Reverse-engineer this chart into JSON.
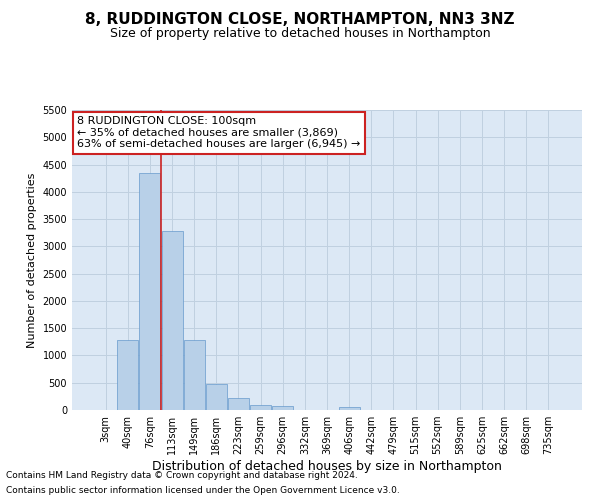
{
  "title": "8, RUDDINGTON CLOSE, NORTHAMPTON, NN3 3NZ",
  "subtitle": "Size of property relative to detached houses in Northampton",
  "xlabel": "Distribution of detached houses by size in Northampton",
  "ylabel": "Number of detached properties",
  "categories": [
    "3sqm",
    "40sqm",
    "76sqm",
    "113sqm",
    "149sqm",
    "186sqm",
    "223sqm",
    "259sqm",
    "296sqm",
    "332sqm",
    "369sqm",
    "406sqm",
    "442sqm",
    "479sqm",
    "515sqm",
    "552sqm",
    "589sqm",
    "625sqm",
    "662sqm",
    "698sqm",
    "735sqm"
  ],
  "bar_values": [
    0,
    1275,
    4350,
    3275,
    1275,
    475,
    225,
    100,
    75,
    0,
    0,
    50,
    0,
    0,
    0,
    0,
    0,
    0,
    0,
    0,
    0
  ],
  "bar_color": "#b8d0e8",
  "bar_edgecolor": "#6699cc",
  "vline_x_index": 2.5,
  "vline_color": "#cc2222",
  "annotation_line1": "8 RUDDINGTON CLOSE: 100sqm",
  "annotation_line2": "← 35% of detached houses are smaller (3,869)",
  "annotation_line3": "63% of semi-detached houses are larger (6,945) →",
  "annotation_box_edgecolor": "#cc2222",
  "annotation_box_facecolor": "#ffffff",
  "ylim": [
    0,
    5500
  ],
  "yticks": [
    0,
    500,
    1000,
    1500,
    2000,
    2500,
    3000,
    3500,
    4000,
    4500,
    5000,
    5500
  ],
  "footer_line1": "Contains HM Land Registry data © Crown copyright and database right 2024.",
  "footer_line2": "Contains public sector information licensed under the Open Government Licence v3.0.",
  "bg_color": "#ffffff",
  "plot_bg_color": "#dce8f5",
  "grid_color": "#c0d0e0",
  "title_fontsize": 11,
  "subtitle_fontsize": 9,
  "xlabel_fontsize": 9,
  "ylabel_fontsize": 8,
  "tick_fontsize": 7,
  "annot_fontsize": 8,
  "footer_fontsize": 6.5
}
